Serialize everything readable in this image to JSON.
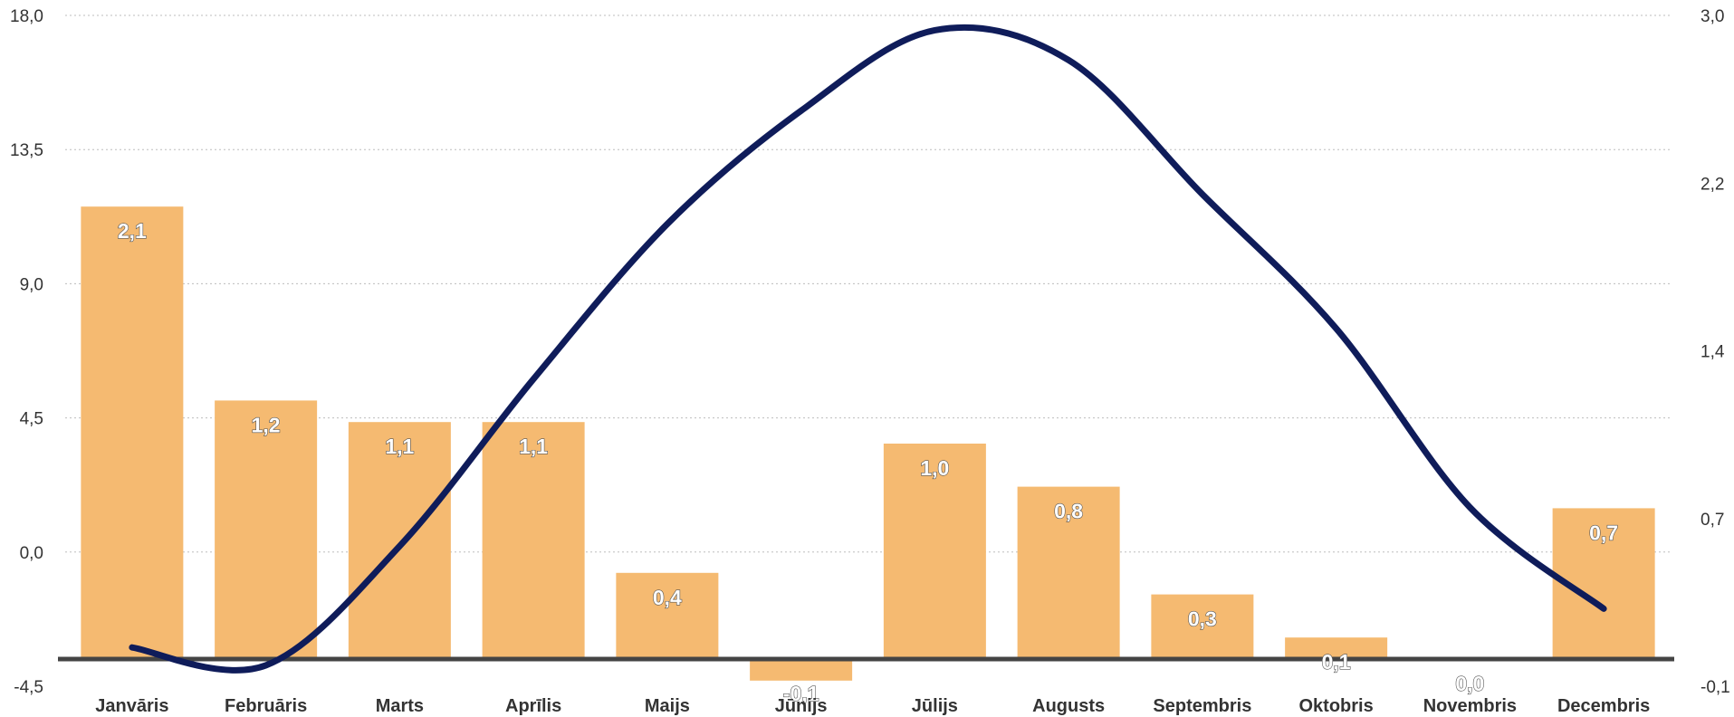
{
  "chart_data": {
    "type": "bar",
    "title": "",
    "xlabel": "",
    "ylabel": "",
    "categories": [
      "Janvāris",
      "Februāris",
      "Marts",
      "Aprīlis",
      "Maijs",
      "Jūnijs",
      "Jūlijs",
      "Augusts",
      "Septembris",
      "Oktobris",
      "Novembris",
      "Decembris"
    ],
    "series": [
      {
        "type": "bar",
        "axis": "right",
        "color": "#F5BA71",
        "values": [
          2.1,
          1.2,
          1.1,
          1.1,
          0.4,
          -0.1,
          1.0,
          0.8,
          0.3,
          0.1,
          0.0,
          0.7
        ],
        "labels": [
          "2,1",
          "1,2",
          "1,1",
          "1,1",
          "0,4",
          "-0,1",
          "1,0",
          "0,8",
          "0,3",
          "0,1",
          "0,0",
          "0,7"
        ]
      },
      {
        "type": "line",
        "axis": "left",
        "color": "#0F1C5A",
        "smooth": true,
        "values": [
          -3.2,
          -3.8,
          0.2,
          5.8,
          11.0,
          14.8,
          17.5,
          16.5,
          12.0,
          7.5,
          1.5,
          -1.9
        ]
      }
    ],
    "y_left": {
      "ylim": [
        -4.5,
        18.0
      ],
      "ticks": [
        "-4,5",
        "0,0",
        "4,5",
        "9,0",
        "13,5",
        "18,0"
      ]
    },
    "y_right": {
      "ylim": [
        -0.1,
        3.0
      ],
      "ticks": [
        "-0,1",
        "0,7",
        "1,4",
        "2,2",
        "3,0"
      ]
    },
    "grid": true,
    "baseline_color": "#444444"
  }
}
